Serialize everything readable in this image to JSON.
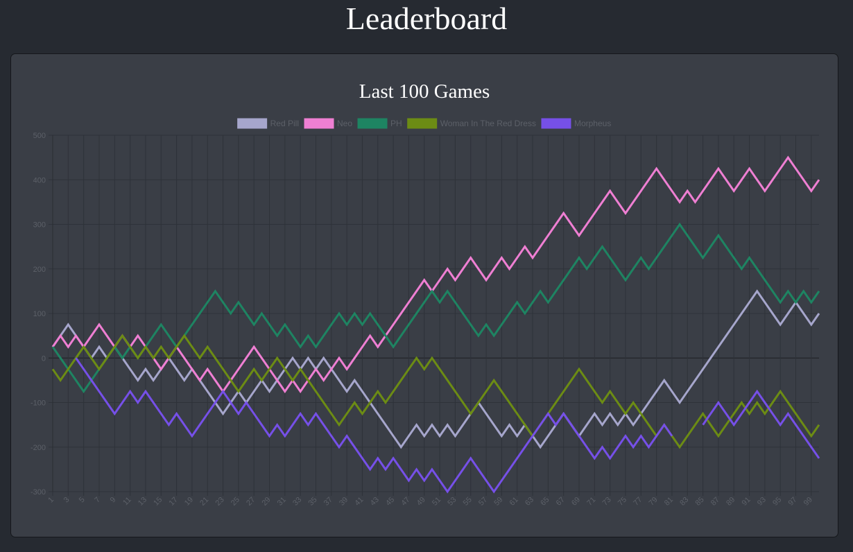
{
  "page": {
    "title": "Leaderboard"
  },
  "chart_data": {
    "type": "line",
    "title": "Last 100 Games",
    "xlabel": "",
    "ylabel": "",
    "ylim": [
      -300,
      500
    ],
    "yticks": [
      -300,
      -200,
      -100,
      0,
      100,
      200,
      300,
      400,
      500
    ],
    "grid": true,
    "legend_position": "top",
    "x": [
      1,
      2,
      3,
      4,
      5,
      6,
      7,
      8,
      9,
      10,
      11,
      12,
      13,
      14,
      15,
      16,
      17,
      18,
      19,
      20,
      21,
      22,
      23,
      24,
      25,
      26,
      27,
      28,
      29,
      30,
      31,
      32,
      33,
      34,
      35,
      36,
      37,
      38,
      39,
      40,
      41,
      42,
      43,
      44,
      45,
      46,
      47,
      48,
      49,
      50,
      51,
      52,
      53,
      54,
      55,
      56,
      57,
      58,
      59,
      60,
      61,
      62,
      63,
      64,
      65,
      66,
      67,
      68,
      69,
      70,
      71,
      72,
      73,
      74,
      75,
      76,
      77,
      78,
      79,
      80,
      81,
      82,
      83,
      84,
      85,
      86,
      87,
      88,
      89,
      90,
      91,
      92,
      93,
      94,
      95,
      96,
      97,
      98,
      99,
      100
    ],
    "x_tick_labels": [
      "1",
      "3",
      "5",
      "7",
      "9",
      "11",
      "13",
      "15",
      "17",
      "19",
      "21",
      "23",
      "25",
      "27",
      "29",
      "31",
      "33",
      "35",
      "37",
      "39",
      "41",
      "43",
      "45",
      "47",
      "49",
      "51",
      "53",
      "55",
      "57",
      "59",
      "61",
      "63",
      "65",
      "67",
      "69",
      "71",
      "73",
      "75",
      "77",
      "79",
      "81",
      "83",
      "85",
      "87",
      "89",
      "91",
      "93",
      "95",
      "97",
      "99"
    ],
    "series": [
      {
        "name": "Red Pill",
        "color": "#a6a6cc",
        "values": [
          25,
          50,
          75,
          50,
          25,
          0,
          25,
          0,
          25,
          0,
          -25,
          -50,
          -25,
          -50,
          -25,
          0,
          -25,
          -50,
          -25,
          -50,
          -75,
          -100,
          -125,
          -100,
          -75,
          -100,
          -75,
          -50,
          -75,
          -50,
          -25,
          0,
          -25,
          0,
          -25,
          0,
          -25,
          -50,
          -75,
          -50,
          -75,
          -100,
          -125,
          -150,
          -175,
          -200,
          -175,
          -150,
          -175,
          -150,
          -175,
          -150,
          -175,
          -150,
          -125,
          -100,
          -125,
          -150,
          -175,
          -150,
          -175,
          -150,
          -175,
          -200,
          -175,
          -150,
          -125,
          -150,
          -175,
          -150,
          -125,
          -150,
          -125,
          -150,
          -125,
          -150,
          -125,
          -100,
          -75,
          -50,
          -75,
          -100,
          -75,
          -50,
          -25,
          0,
          25,
          50,
          75,
          100,
          125,
          150,
          125,
          100,
          75,
          100,
          125,
          100,
          75,
          100
        ]
      },
      {
        "name": "Neo",
        "color": "#ef7fd3",
        "values": [
          25,
          50,
          25,
          50,
          25,
          50,
          75,
          50,
          25,
          50,
          25,
          50,
          25,
          0,
          -25,
          0,
          25,
          0,
          -25,
          -50,
          -25,
          -50,
          -75,
          -50,
          -25,
          0,
          25,
          0,
          -25,
          -50,
          -75,
          -50,
          -75,
          -50,
          -25,
          -50,
          -25,
          0,
          -25,
          0,
          25,
          50,
          25,
          50,
          75,
          100,
          125,
          150,
          175,
          150,
          175,
          200,
          175,
          200,
          225,
          200,
          175,
          200,
          225,
          200,
          225,
          250,
          225,
          250,
          275,
          300,
          325,
          300,
          275,
          300,
          325,
          350,
          375,
          350,
          325,
          350,
          375,
          400,
          425,
          400,
          375,
          350,
          375,
          350,
          375,
          400,
          425,
          400,
          375,
          400,
          425,
          400,
          375,
          400,
          425,
          450,
          425,
          400,
          375,
          400
        ]
      },
      {
        "name": "PH",
        "color": "#1e8462",
        "values": [
          25,
          0,
          -25,
          -50,
          -75,
          -50,
          -25,
          0,
          25,
          0,
          25,
          0,
          25,
          50,
          75,
          50,
          25,
          50,
          75,
          100,
          125,
          150,
          125,
          100,
          125,
          100,
          75,
          100,
          75,
          50,
          75,
          50,
          25,
          50,
          25,
          50,
          75,
          100,
          75,
          100,
          75,
          100,
          75,
          50,
          25,
          50,
          75,
          100,
          125,
          150,
          125,
          150,
          125,
          100,
          75,
          50,
          75,
          50,
          75,
          100,
          125,
          100,
          125,
          150,
          125,
          150,
          175,
          200,
          225,
          200,
          225,
          250,
          225,
          200,
          175,
          200,
          225,
          200,
          225,
          250,
          275,
          300,
          275,
          250,
          225,
          250,
          275,
          250,
          225,
          200,
          225,
          200,
          175,
          150,
          125,
          150,
          125,
          150,
          125,
          150
        ]
      },
      {
        "name": "Woman In The Red Dress",
        "color": "#6c8c14",
        "values": [
          -25,
          -50,
          -25,
          0,
          25,
          0,
          -25,
          0,
          25,
          50,
          25,
          0,
          25,
          0,
          25,
          0,
          25,
          50,
          25,
          0,
          25,
          0,
          -25,
          -50,
          -75,
          -50,
          -25,
          -50,
          -25,
          0,
          -25,
          -50,
          -25,
          -50,
          -75,
          -100,
          -125,
          -150,
          -125,
          -100,
          -125,
          -100,
          -75,
          -100,
          -75,
          -50,
          -25,
          0,
          -25,
          0,
          -25,
          -50,
          -75,
          -100,
          -125,
          -100,
          -75,
          -50,
          -75,
          -100,
          -125,
          -150,
          -175,
          -150,
          -125,
          -100,
          -75,
          -50,
          -25,
          -50,
          -75,
          -100,
          -75,
          -100,
          -125,
          -100,
          -125,
          -150,
          -175,
          -150,
          -175,
          -200,
          -175,
          -150,
          -125,
          -150,
          -175,
          -150,
          -125,
          -100,
          -125,
          -100,
          -125,
          -100,
          -75,
          -100,
          -125,
          -150,
          -175,
          -150
        ]
      },
      {
        "name": "Morpheus",
        "color": "#7650e8",
        "values": [
          null,
          null,
          null,
          0,
          -25,
          -50,
          -75,
          -100,
          -125,
          -100,
          -75,
          -100,
          -75,
          -100,
          -125,
          -150,
          -125,
          -150,
          -175,
          -150,
          -125,
          -100,
          -75,
          -100,
          -125,
          -100,
          -125,
          -150,
          -175,
          -150,
          -175,
          -150,
          -125,
          -150,
          -125,
          -150,
          -175,
          -200,
          -175,
          -200,
          -225,
          -250,
          -225,
          -250,
          -225,
          -250,
          -275,
          -250,
          -275,
          -250,
          -275,
          -300,
          -275,
          -250,
          -225,
          -250,
          -275,
          -300,
          -275,
          -250,
          -225,
          -200,
          -175,
          -150,
          -125,
          -150,
          -125,
          -150,
          -175,
          -200,
          -225,
          -200,
          -225,
          -200,
          -175,
          -200,
          -175,
          -200,
          -175,
          -150,
          -175,
          null,
          null,
          null,
          -150,
          -125,
          -100,
          -125,
          -150,
          -125,
          -100,
          -75,
          -100,
          -125,
          -150,
          -125,
          -150,
          -175,
          -200,
          -225
        ]
      }
    ]
  }
}
